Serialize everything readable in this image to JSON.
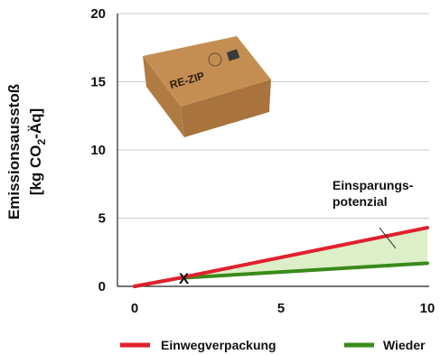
{
  "chart_data": {
    "type": "line",
    "x": [
      0,
      1.5,
      10
    ],
    "xlim": [
      0,
      10
    ],
    "ylim": [
      0,
      20
    ],
    "xticks": [
      0,
      5,
      10
    ],
    "yticks": [
      0,
      5,
      10,
      15,
      20
    ],
    "xtick_labels": [
      "0",
      "5",
      "10"
    ],
    "ytick_labels": [
      "0",
      "5",
      "10",
      "15",
      "20"
    ],
    "ylabel_line1": "Emissionsausstoß",
    "ylabel_line2_pre": "[kg CO",
    "ylabel_line2_sub": "2",
    "ylabel_line2_post": "-Äq]",
    "grid": "horizontal",
    "series": [
      {
        "name": "Einwegverpackung",
        "color": "#e0202e",
        "values": [
          0,
          0.6,
          4.3
        ]
      },
      {
        "name": "Wieder",
        "color": "#3a8a1a",
        "values": [
          0,
          0.6,
          1.7
        ]
      }
    ],
    "fill_between": {
      "color": "#dcefc8",
      "from_x": 1.5,
      "to_x": 10
    },
    "annotations": [
      {
        "text_line1": "Einsparungs-",
        "text_line2": "potenzial"
      },
      {
        "text": "X",
        "x": 1.5,
        "y": 0.6
      }
    ],
    "legend_position": "bottom"
  },
  "photo": {
    "brand_text": "RE-ZIP",
    "color": "#b8834a"
  }
}
